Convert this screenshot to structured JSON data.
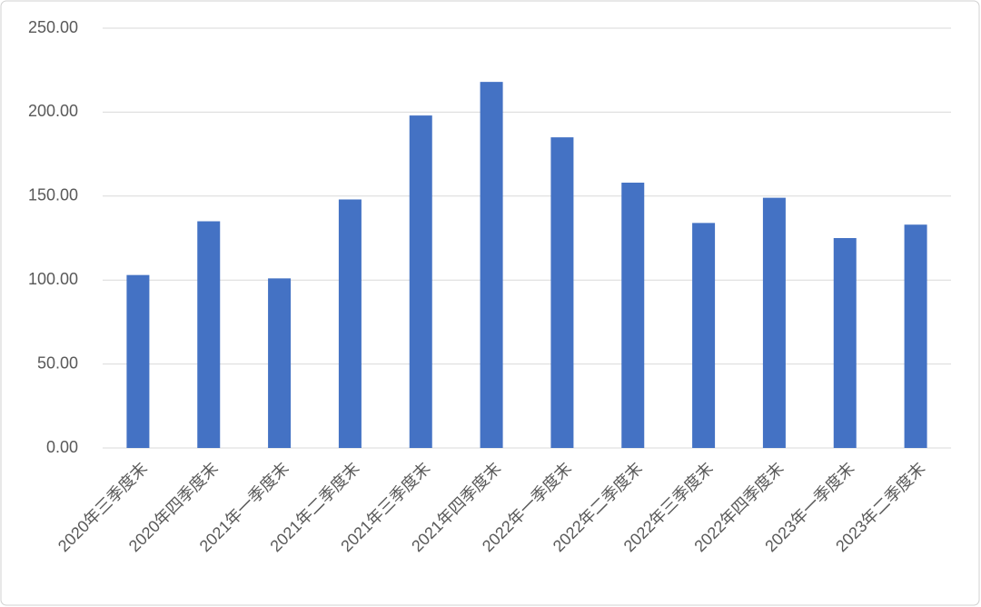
{
  "chart_data": {
    "type": "bar",
    "categories": [
      "2020年三季度末",
      "2020年四季度末",
      "2021年一季度末",
      "2021年二季度末",
      "2021年三季度末",
      "2021年四季度末",
      "2022年一季度末",
      "2022年二季度末",
      "2022年三季度末",
      "2022年四季度末",
      "2023年一季度末",
      "2023年二季度末"
    ],
    "values": [
      103,
      135,
      101,
      148,
      198,
      218,
      185,
      158,
      134,
      149,
      125,
      133
    ],
    "color": "#4472c4",
    "ylim": [
      0,
      250
    ],
    "yticks": [
      {
        "value": 0,
        "label": "0.00"
      },
      {
        "value": 50,
        "label": "50.00"
      },
      {
        "value": 100,
        "label": "100.00"
      },
      {
        "value": 150,
        "label": "150.00"
      },
      {
        "value": 200,
        "label": "200.00"
      },
      {
        "value": 250,
        "label": "250.00"
      }
    ],
    "grid": true
  }
}
